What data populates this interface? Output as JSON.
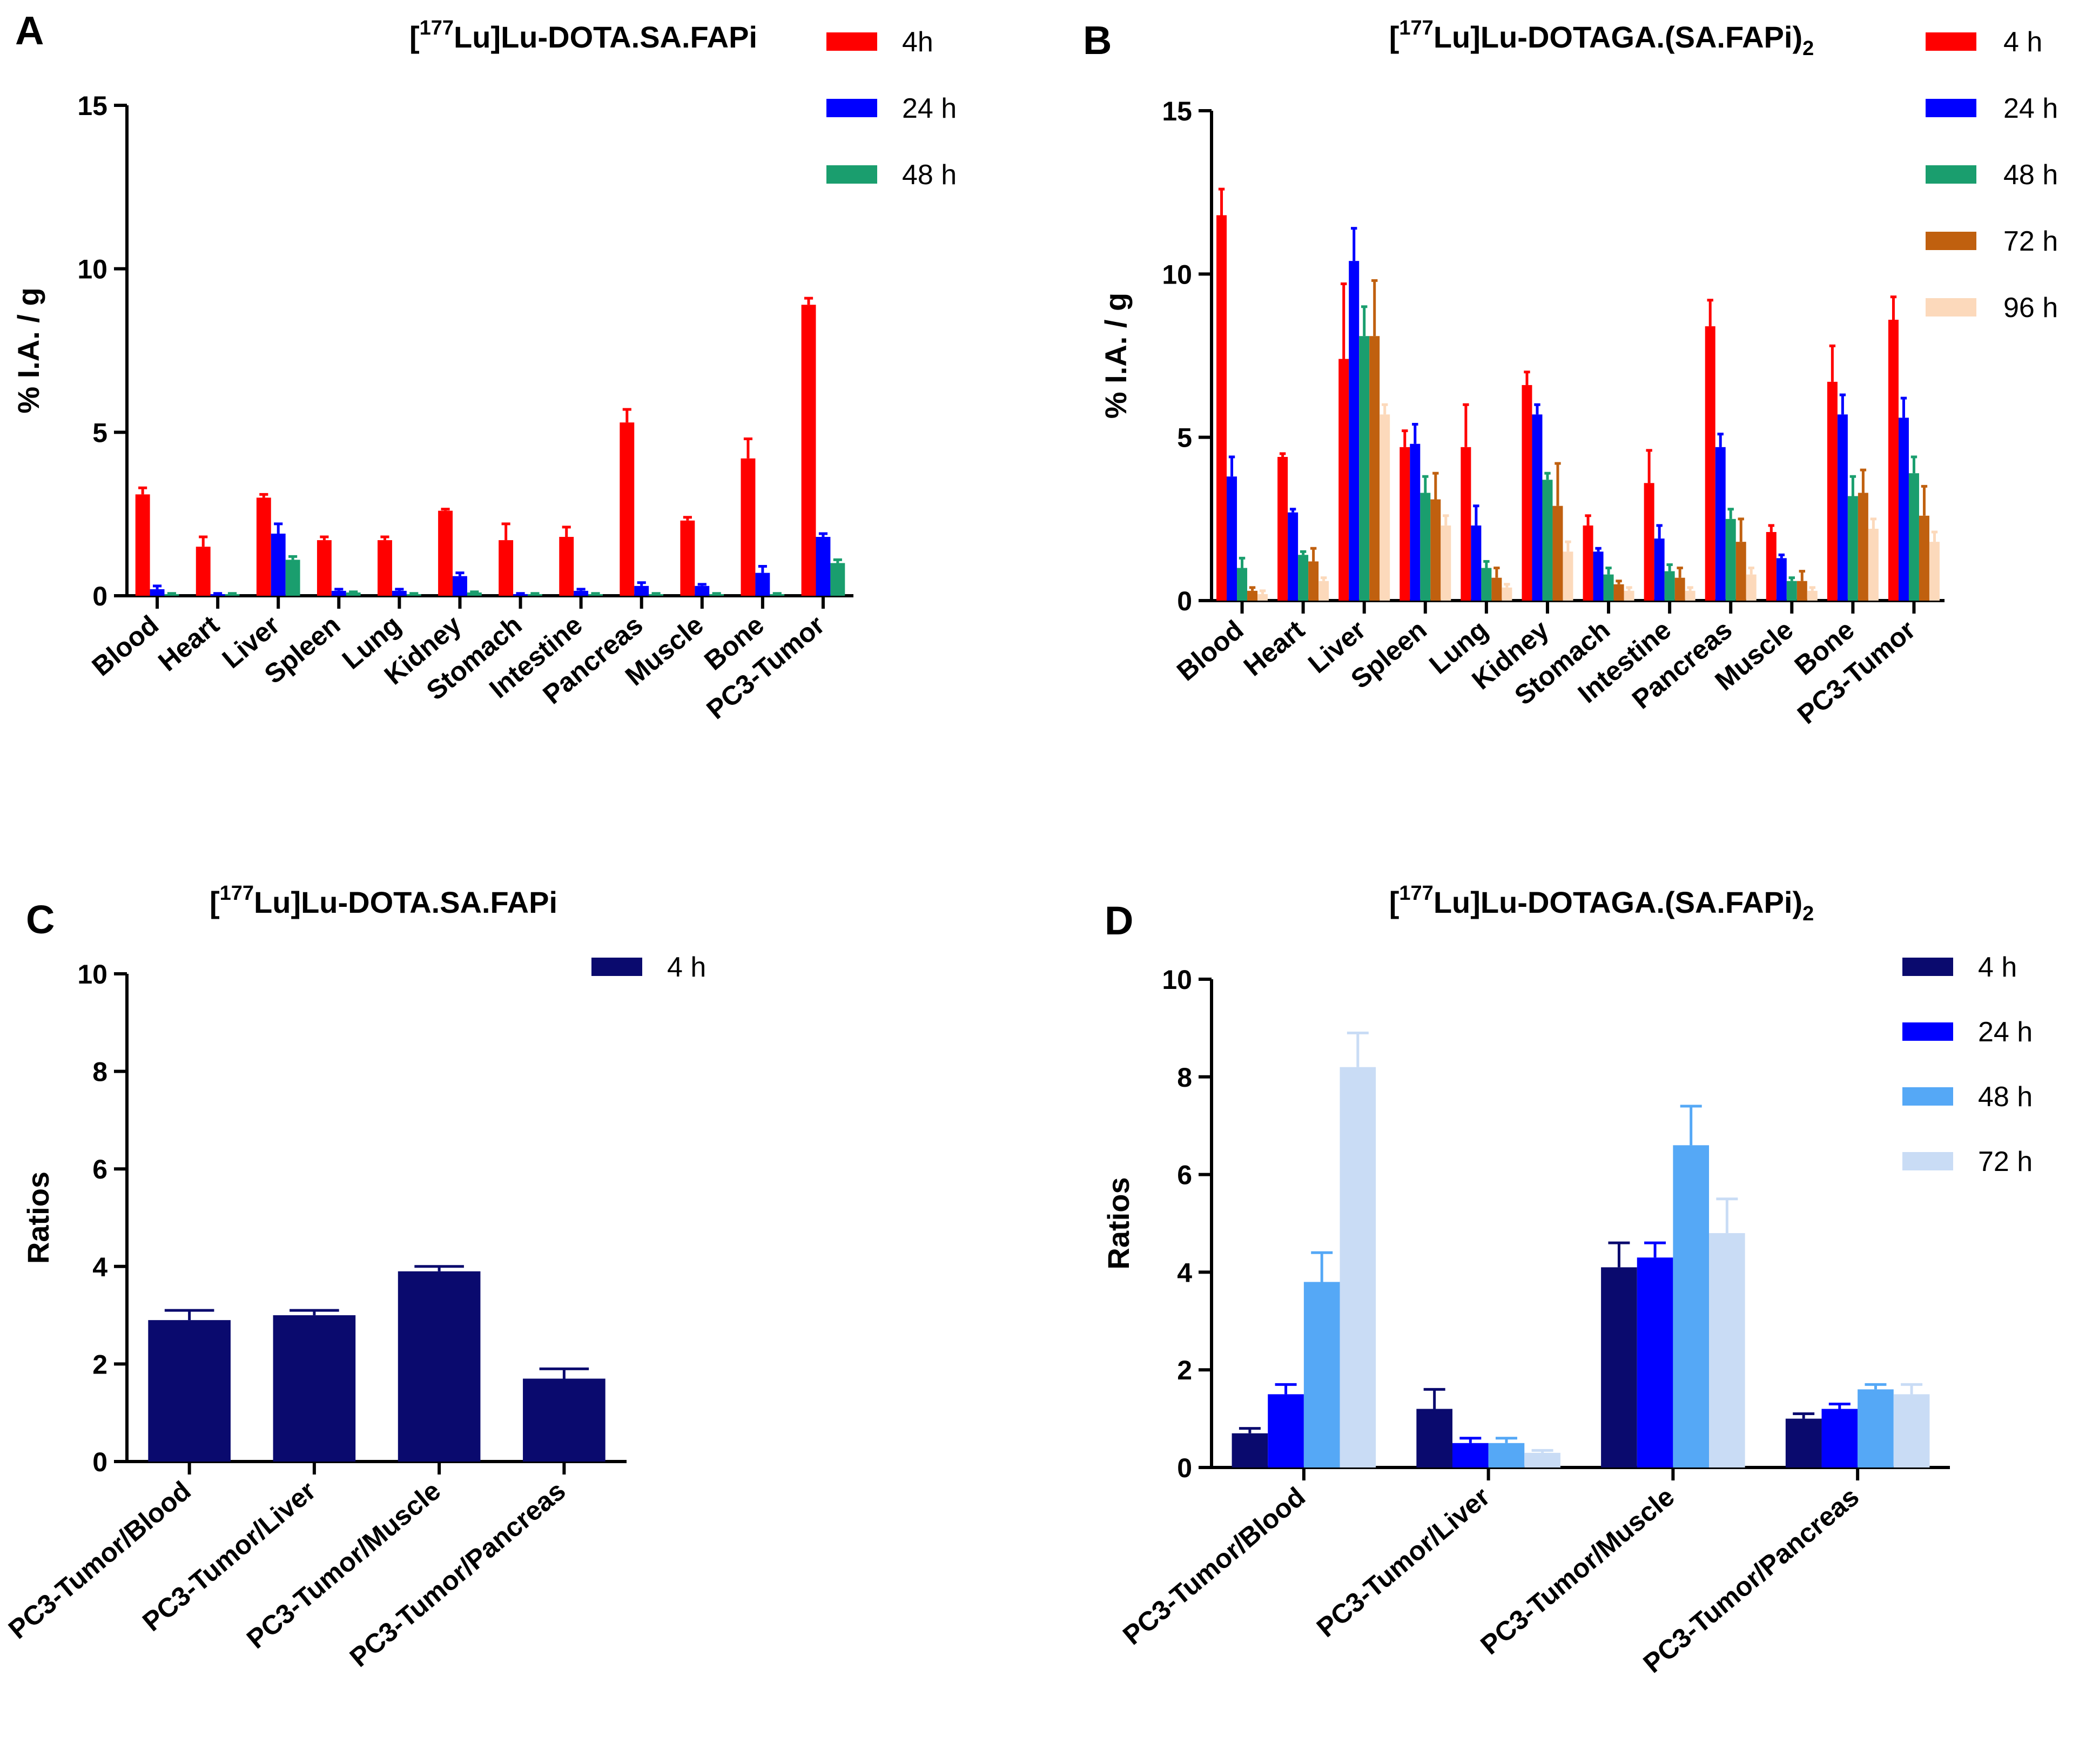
{
  "chart_data": [
    {
      "id": "A",
      "type": "bar",
      "panel_letter": "A",
      "title": {
        "prefix": "[",
        "sup": "177",
        "main": "Lu]Lu-DOTA.SA.FAPi",
        "sub": ""
      },
      "xlabel": "",
      "ylabel": "% I.A. / g",
      "ylim": [
        0,
        15
      ],
      "yticks": [
        0,
        5,
        10,
        15
      ],
      "legend_position": "top-right",
      "categories": [
        "Blood",
        "Heart",
        "Liver",
        "Spleen",
        "Lung",
        "Kidney",
        "Stomach",
        "Intestine",
        "Pancreas",
        "Muscle",
        "Bone",
        "PC3-Tumor"
      ],
      "series": [
        {
          "name": "4h",
          "color": "#ff0000",
          "values": [
            3.1,
            1.5,
            3.0,
            1.7,
            1.7,
            2.6,
            1.7,
            1.8,
            5.3,
            2.3,
            4.2,
            8.9
          ],
          "errors": [
            0.2,
            0.3,
            0.1,
            0.1,
            0.1,
            0.05,
            0.5,
            0.3,
            0.4,
            0.1,
            0.6,
            0.2
          ]
        },
        {
          "name": "24 h",
          "color": "#0000ff",
          "values": [
            0.2,
            0.05,
            1.9,
            0.15,
            0.15,
            0.6,
            0.05,
            0.15,
            0.3,
            0.3,
            0.7,
            1.8
          ],
          "errors": [
            0.1,
            0.02,
            0.3,
            0.05,
            0.05,
            0.1,
            0.02,
            0.05,
            0.1,
            0.05,
            0.2,
            0.1
          ]
        },
        {
          "name": "48 h",
          "color": "#1a9e6e",
          "values": [
            0.05,
            0.05,
            1.1,
            0.1,
            0.05,
            0.1,
            0.05,
            0.05,
            0.05,
            0.05,
            0.05,
            1.0
          ],
          "errors": [
            0.02,
            0.02,
            0.1,
            0.02,
            0.02,
            0.02,
            0.02,
            0.02,
            0.02,
            0.02,
            0.02,
            0.1
          ]
        }
      ]
    },
    {
      "id": "B",
      "type": "bar",
      "panel_letter": "B",
      "title": {
        "prefix": "[",
        "sup": "177",
        "main": "Lu]Lu-DOTAGA.(SA.FAPi)",
        "sub": "2"
      },
      "xlabel": "",
      "ylabel": "% I.A. / g",
      "ylim": [
        0,
        15
      ],
      "yticks": [
        0,
        5,
        10,
        15
      ],
      "legend_position": "top-right",
      "categories": [
        "Blood",
        "Heart",
        "Liver",
        "Spleen",
        "Lung",
        "Kidney",
        "Stomach",
        "Intestine",
        "Pancreas",
        "Muscle",
        "Bone",
        "PC3-Tumor"
      ],
      "series": [
        {
          "name": "4 h",
          "color": "#ff0000",
          "values": [
            11.8,
            4.4,
            7.4,
            4.7,
            4.7,
            6.6,
            2.3,
            3.6,
            8.4,
            2.1,
            6.7,
            8.6
          ],
          "errors": [
            0.8,
            0.1,
            2.3,
            0.5,
            1.3,
            0.4,
            0.3,
            1.0,
            0.8,
            0.2,
            1.1,
            0.7
          ]
        },
        {
          "name": "24 h",
          "color": "#0000ff",
          "values": [
            3.8,
            2.7,
            10.4,
            4.8,
            2.3,
            5.7,
            1.5,
            1.9,
            4.7,
            1.3,
            5.7,
            5.6
          ],
          "errors": [
            0.6,
            0.1,
            1.0,
            0.6,
            0.6,
            0.3,
            0.1,
            0.4,
            0.4,
            0.1,
            0.6,
            0.6
          ]
        },
        {
          "name": "48 h",
          "color": "#1a9e6e",
          "values": [
            1.0,
            1.4,
            8.1,
            3.3,
            1.0,
            3.7,
            0.8,
            0.9,
            2.5,
            0.6,
            3.2,
            3.9
          ],
          "errors": [
            0.3,
            0.1,
            0.9,
            0.5,
            0.2,
            0.2,
            0.2,
            0.2,
            0.3,
            0.1,
            0.6,
            0.5
          ]
        },
        {
          "name": "72 h",
          "color": "#c0600f",
          "values": [
            0.3,
            1.2,
            8.1,
            3.1,
            0.7,
            2.9,
            0.5,
            0.7,
            1.8,
            0.6,
            3.3,
            2.6
          ],
          "errors": [
            0.1,
            0.4,
            1.7,
            0.8,
            0.3,
            1.3,
            0.1,
            0.3,
            0.7,
            0.3,
            0.7,
            0.9
          ]
        },
        {
          "name": "96 h",
          "color": "#fcd9bb",
          "values": [
            0.2,
            0.6,
            5.7,
            2.3,
            0.4,
            1.5,
            0.3,
            0.3,
            0.8,
            0.3,
            2.2,
            1.8
          ],
          "errors": [
            0.1,
            0.1,
            0.3,
            0.3,
            0.1,
            0.3,
            0.1,
            0.1,
            0.2,
            0.1,
            0.3,
            0.3
          ]
        }
      ]
    },
    {
      "id": "C",
      "type": "bar",
      "panel_letter": "C",
      "title": {
        "prefix": "[",
        "sup": "177",
        "main": "Lu]Lu-DOTA.SA.FAPi",
        "sub": ""
      },
      "xlabel": "",
      "ylabel": "Ratios",
      "ylim": [
        0,
        10
      ],
      "yticks": [
        0,
        2,
        4,
        6,
        8,
        10
      ],
      "legend_position": "top-right",
      "categories": [
        "PC3-Tumor/Blood",
        "PC3-Tumor/Liver",
        "PC3-Tumor/Muscle",
        "PC3-Tumor/Pancreas"
      ],
      "series": [
        {
          "name": "4 h",
          "color": "#0a0a6e",
          "values": [
            2.9,
            3.0,
            3.9,
            1.7
          ],
          "errors": [
            0.2,
            0.1,
            0.1,
            0.2
          ]
        }
      ]
    },
    {
      "id": "D",
      "type": "bar",
      "panel_letter": "D",
      "title": {
        "prefix": "[",
        "sup": "177",
        "main": "Lu]Lu-DOTAGA.(SA.FAPi)",
        "sub": "2"
      },
      "xlabel": "",
      "ylabel": "Ratios",
      "ylim": [
        0,
        10
      ],
      "yticks": [
        0,
        2,
        4,
        6,
        8,
        10
      ],
      "legend_position": "top-right",
      "categories": [
        "PC3-Tumor/Blood",
        "PC3-Tumor/Liver",
        "PC3-Tumor/Muscle",
        "PC3-Tumor/Pancreas"
      ],
      "series": [
        {
          "name": "4 h",
          "color": "#0a0a6e",
          "values": [
            0.7,
            1.2,
            4.1,
            1.0
          ],
          "errors": [
            0.1,
            0.4,
            0.5,
            0.1
          ]
        },
        {
          "name": "24 h",
          "color": "#0000ff",
          "values": [
            1.5,
            0.5,
            4.3,
            1.2
          ],
          "errors": [
            0.2,
            0.1,
            0.3,
            0.1
          ]
        },
        {
          "name": "48 h",
          "color": "#55a8f6",
          "values": [
            3.8,
            0.5,
            6.6,
            1.6
          ],
          "errors": [
            0.6,
            0.1,
            0.8,
            0.1
          ]
        },
        {
          "name": "72 h",
          "color": "#c9dcf5",
          "values": [
            8.2,
            0.3,
            4.8,
            1.5
          ],
          "errors": [
            0.7,
            0.05,
            0.7,
            0.2
          ]
        }
      ]
    }
  ]
}
